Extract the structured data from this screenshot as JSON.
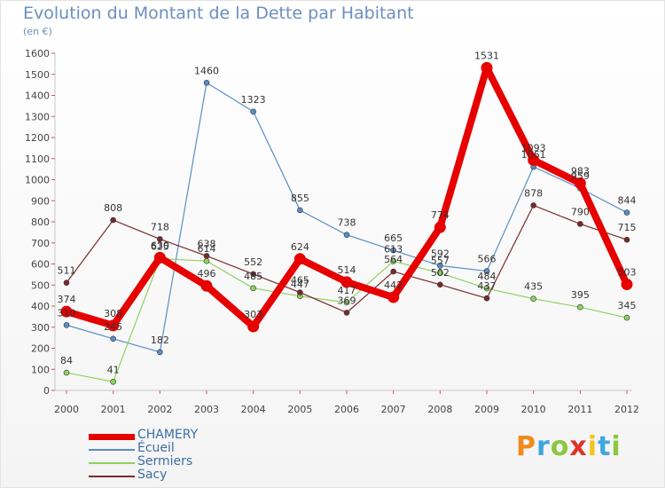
{
  "header": {
    "title": "Evolution du Montant de la Dette par Habitant",
    "subtitle": "(en €)"
  },
  "logo": {
    "text": "Proxiti",
    "colors": [
      "#f08a1c",
      "#3fa7df",
      "#8cc63f",
      "#e0312b",
      "#f5c31c",
      "#3fa7df",
      "#8cc63f"
    ]
  },
  "chart_data": {
    "type": "line",
    "title": "Evolution du Montant de la Dette par Habitant",
    "subtitle": "(en €)",
    "xlabel": "",
    "ylabel": "",
    "x": [
      "2000",
      "2001",
      "2002",
      "2003",
      "2004",
      "2005",
      "2006",
      "2007",
      "2008",
      "2009",
      "2010",
      "2011",
      "2012"
    ],
    "ylim": [
      0,
      1600
    ],
    "yticks": [
      0,
      100,
      200,
      300,
      400,
      500,
      600,
      700,
      800,
      900,
      1000,
      1100,
      1200,
      1300,
      1400,
      1500,
      1600
    ],
    "grid": false,
    "legend_position": "bottom-left",
    "series": [
      {
        "name": "CHAMERY",
        "color": "#e60000",
        "values": [
          374,
          308,
          630,
          496,
          303,
          624,
          514,
          442,
          774,
          1531,
          1093,
          983,
          503
        ]
      },
      {
        "name": "Écueil",
        "color": "#5a8ec6",
        "values": [
          310,
          245,
          182,
          1460,
          1323,
          855,
          738,
          665,
          592,
          566,
          1061,
          959,
          844
        ]
      },
      {
        "name": "Sermiers",
        "color": "#8dd35f",
        "values": [
          84,
          41,
          625,
          614,
          485,
          447,
          417,
          613,
          557,
          484,
          435,
          395,
          345
        ]
      },
      {
        "name": "Sacy",
        "color": "#7a2a2a",
        "values": [
          511,
          808,
          718,
          638,
          552,
          465,
          369,
          564,
          502,
          437,
          878,
          790,
          715
        ]
      }
    ]
  }
}
